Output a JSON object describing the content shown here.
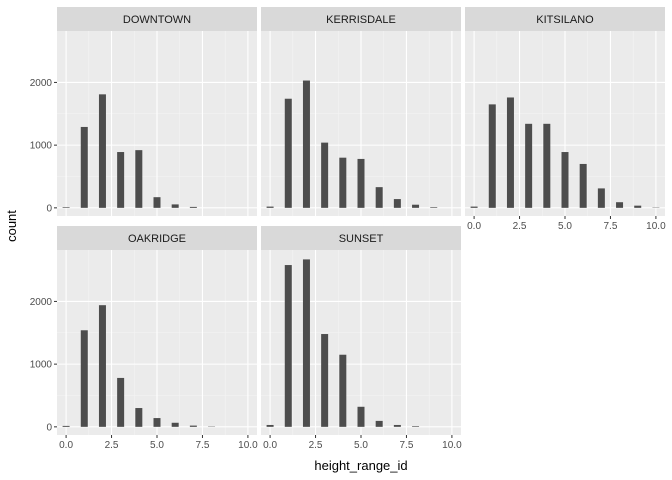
{
  "chart_data": {
    "type": "bar",
    "xlabel": "height_range_id",
    "ylabel": "count",
    "xlim": [
      -0.5,
      10.5
    ],
    "ylim": [
      -130,
      2820
    ],
    "x_ticks": [
      0,
      2.5,
      5,
      7.5,
      10
    ],
    "x_tick_labels": [
      "0.0",
      "2.5",
      "5.0",
      "7.5",
      "10.0"
    ],
    "y_ticks": [
      0,
      1000,
      2000
    ],
    "y_tick_labels": [
      "0",
      "1000",
      "2000"
    ],
    "x": [
      0,
      1,
      2,
      3,
      4,
      5,
      6,
      7,
      8,
      9,
      10
    ],
    "grid": true,
    "layout": {
      "rows": 2,
      "cols": 3
    },
    "bar_color": "#4d4d4d",
    "panel_background": "#ebebeb",
    "strip_background": "#d9d9d9",
    "panels": [
      {
        "name": "DOWNTOWN",
        "values": [
          10,
          1290,
          1810,
          890,
          920,
          170,
          55,
          15,
          0,
          0,
          0
        ]
      },
      {
        "name": "KERRISDALE",
        "values": [
          20,
          1740,
          2030,
          1040,
          800,
          780,
          330,
          140,
          50,
          10,
          0
        ]
      },
      {
        "name": "KITSILANO",
        "values": [
          20,
          1650,
          1760,
          1340,
          1340,
          890,
          700,
          310,
          90,
          35,
          5
        ]
      },
      {
        "name": "OAKRIDGE",
        "values": [
          15,
          1540,
          1940,
          780,
          300,
          140,
          65,
          20,
          5,
          0,
          0
        ]
      },
      {
        "name": "SUNSET",
        "values": [
          30,
          2580,
          2670,
          1480,
          1150,
          320,
          95,
          30,
          10,
          0,
          0
        ]
      }
    ]
  }
}
